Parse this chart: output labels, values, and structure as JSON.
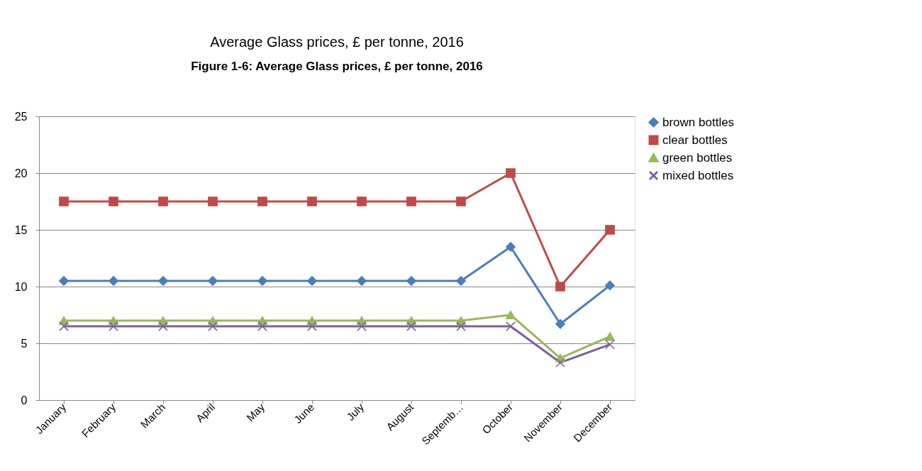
{
  "chart_data": {
    "type": "line",
    "title": "Average Glass prices, £ per tonne, 2016",
    "annotations": [
      "Figure 1-6: Average Glass prices, £ per tonne, 2016"
    ],
    "categories": [
      "January",
      "February",
      "March",
      "April",
      "May",
      "June",
      "July",
      "August",
      "Septemb…",
      "October",
      "November",
      "December"
    ],
    "series": [
      {
        "name": "brown bottles",
        "color": "#4a7ebb",
        "marker": "diamond",
        "values": [
          10.5,
          10.5,
          10.5,
          10.5,
          10.5,
          10.5,
          10.5,
          10.5,
          10.5,
          13.5,
          6.7,
          10.1
        ]
      },
      {
        "name": "clear bottles",
        "color": "#be4b48",
        "marker": "square",
        "values": [
          17.5,
          17.5,
          17.5,
          17.5,
          17.5,
          17.5,
          17.5,
          17.5,
          17.5,
          20,
          10,
          15
        ]
      },
      {
        "name": "green bottles",
        "color": "#98b954",
        "marker": "triangle",
        "values": [
          7,
          7,
          7,
          7,
          7,
          7,
          7,
          7,
          7,
          7.5,
          3.7,
          5.6
        ]
      },
      {
        "name": "mixed bottles",
        "color": "#7d60a0",
        "marker": "cross",
        "values": [
          6.5,
          6.5,
          6.5,
          6.5,
          6.5,
          6.5,
          6.5,
          6.5,
          6.5,
          6.5,
          3.3,
          4.9
        ]
      }
    ],
    "ylim": [
      0,
      25
    ],
    "yticks": [
      0,
      5,
      10,
      15,
      20,
      25
    ],
    "grid": "y",
    "legend": "right",
    "line_style": "solid"
  }
}
